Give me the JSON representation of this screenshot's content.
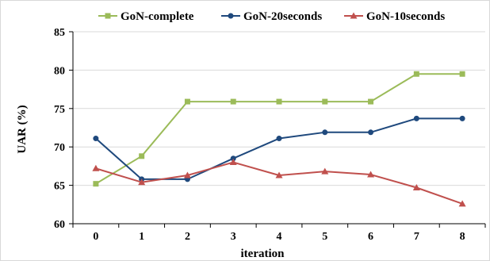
{
  "chart_data": {
    "type": "line",
    "title": "",
    "xlabel": "iteration",
    "ylabel": "UAR (%)",
    "categories": [
      "0",
      "1",
      "2",
      "3",
      "4",
      "5",
      "6",
      "7",
      "8"
    ],
    "ylim": [
      60,
      85
    ],
    "yticks": [
      60,
      65,
      70,
      75,
      80,
      85
    ],
    "grid": "horizontal",
    "legend_position": "top",
    "series": [
      {
        "name": "GoN-complete",
        "color": "#9bbb59",
        "marker": "square",
        "values": [
          65.2,
          68.8,
          75.9,
          75.9,
          75.9,
          75.9,
          75.9,
          79.5,
          79.5
        ]
      },
      {
        "name": "GoN-20seconds",
        "color": "#1f497d",
        "marker": "circle",
        "values": [
          71.1,
          65.8,
          65.8,
          68.5,
          71.1,
          71.9,
          71.9,
          73.7,
          73.7
        ]
      },
      {
        "name": "GoN-10seconds",
        "color": "#c0504d",
        "marker": "triangle",
        "values": [
          67.2,
          65.4,
          66.3,
          68.0,
          66.3,
          66.8,
          66.4,
          64.7,
          62.6
        ]
      }
    ]
  }
}
